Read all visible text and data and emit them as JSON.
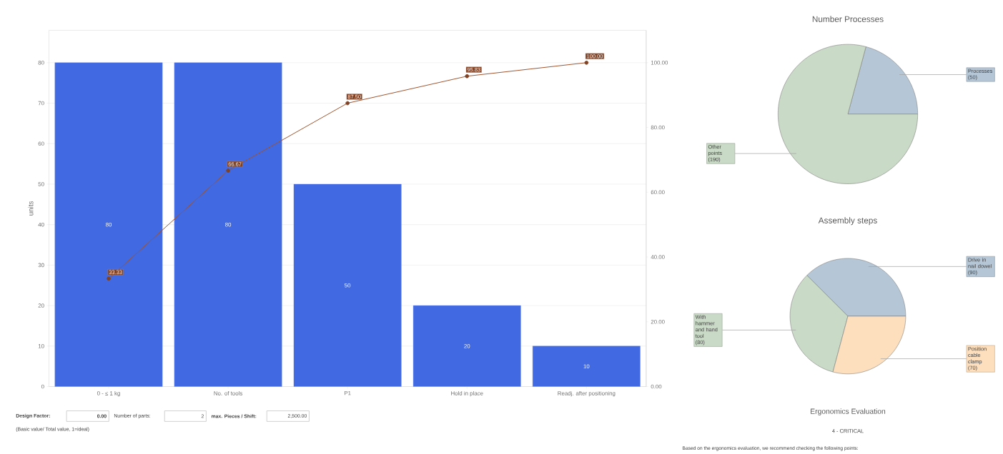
{
  "chart_data": [
    {
      "type": "bar",
      "ylabel": "units",
      "categories": [
        "0 - ≤ 1 kg",
        "No. of tools",
        "P1",
        "Hold in place",
        "Readj. after positioning"
      ],
      "series": [
        {
          "type": "bar",
          "color": "#4169e1",
          "values": [
            80,
            80,
            50,
            20,
            10
          ],
          "value_labels": [
            "80",
            "80",
            "50",
            "20",
            "10"
          ]
        },
        {
          "type": "line",
          "axis": "y2",
          "color": "#a0522d",
          "marker": "circle",
          "values": [
            33.33,
            66.67,
            87.5,
            95.83,
            100
          ],
          "value_labels": [
            "33.33",
            "66.67",
            "87.50",
            "95.83",
            "100.00"
          ]
        }
      ],
      "ylim": [
        0,
        88
      ],
      "yticks": [
        0,
        10,
        20,
        30,
        40,
        50,
        60,
        70,
        80
      ],
      "y2lim": [
        0,
        110
      ],
      "y2ticks": [
        {
          "value": 0,
          "label": "0.00"
        },
        {
          "value": 20,
          "label": "20.00"
        },
        {
          "value": 40,
          "label": "40.00"
        },
        {
          "value": 60,
          "label": "60.00"
        },
        {
          "value": 80,
          "label": "80.00"
        },
        {
          "value": 100,
          "label": "100.00"
        }
      ],
      "grid": "y"
    },
    {
      "type": "other",
      "annotations": [
        "Design Factor:",
        "0.00",
        "Number of parts:",
        "2",
        "max. Pieces / Shift:",
        "2,500.00",
        "(Basic value/ Total value, 1=ideal)"
      ]
    },
    {
      "type": "pie",
      "title": "Number Processes",
      "categories": [
        "Processes",
        "Other points"
      ],
      "values": [
        50,
        190
      ],
      "colors": [
        "#b5c7d7",
        "#c9dac6"
      ],
      "value_labels": [
        "(50)",
        "(190)"
      ]
    },
    {
      "type": "pie",
      "title": "Assembly steps",
      "categories": [
        "Drive in nail dowel",
        "With hammer and hand tool",
        "Position cable clamp"
      ],
      "values": [
        90,
        80,
        70
      ],
      "colors": [
        "#b5c7d7",
        "#c9dac6",
        "#fddfbd"
      ],
      "value_labels": [
        "(90)",
        "(80)",
        "(70)"
      ]
    },
    {
      "type": "other",
      "title": "Ergonomics Evaluation",
      "annotations": [
        "4 - CRITICAL",
        "Based on the ergonomics evaluation, we recommend checking the following points:"
      ]
    }
  ]
}
